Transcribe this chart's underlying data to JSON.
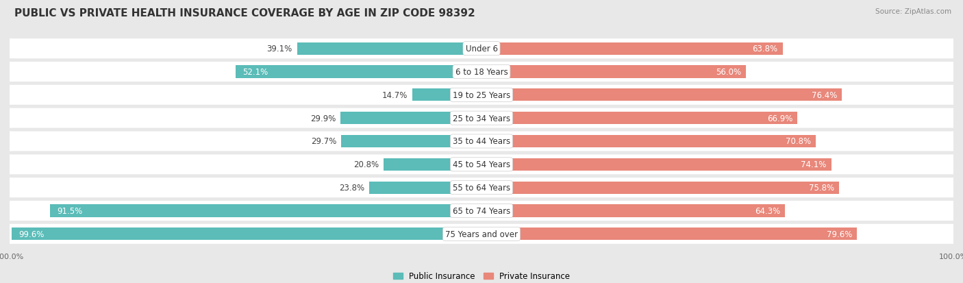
{
  "title": "PUBLIC VS PRIVATE HEALTH INSURANCE COVERAGE BY AGE IN ZIP CODE 98392",
  "source": "Source: ZipAtlas.com",
  "categories": [
    "Under 6",
    "6 to 18 Years",
    "19 to 25 Years",
    "25 to 34 Years",
    "35 to 44 Years",
    "45 to 54 Years",
    "55 to 64 Years",
    "65 to 74 Years",
    "75 Years and over"
  ],
  "public_values": [
    39.1,
    52.1,
    14.7,
    29.9,
    29.7,
    20.8,
    23.8,
    91.5,
    99.6
  ],
  "private_values": [
    63.8,
    56.0,
    76.4,
    66.9,
    70.8,
    74.1,
    75.8,
    64.3,
    79.6
  ],
  "public_color": "#5bbcb8",
  "private_color": "#e8877a",
  "background_color": "#e8e8e8",
  "bar_bg_color": "#f5f5f5",
  "row_bg_color": "#ffffff",
  "title_fontsize": 11,
  "label_fontsize": 8.5,
  "tick_fontsize": 8,
  "legend_fontsize": 8.5,
  "category_fontsize": 8.5
}
